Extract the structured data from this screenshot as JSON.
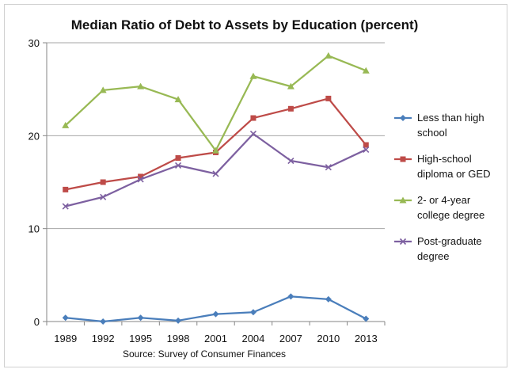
{
  "chart_data": {
    "type": "line",
    "title": "Median Ratio of Debt to Assets by Education (percent)",
    "source": "Source: Survey of Consumer Finances",
    "categories": [
      "1989",
      "1992",
      "1995",
      "1998",
      "2001",
      "2004",
      "2007",
      "2010",
      "2013"
    ],
    "ylim": [
      0,
      30
    ],
    "yticks": [
      0,
      10,
      20,
      30
    ],
    "grid": true,
    "legend_position": "right",
    "series": [
      {
        "name": "Less than high school",
        "legend_lines": [
          "Less than high",
          "school"
        ],
        "color": "#4a7ebb",
        "marker": "diamond",
        "values": [
          0.4,
          0.0,
          0.4,
          0.1,
          0.8,
          1.0,
          2.7,
          2.4,
          0.3
        ]
      },
      {
        "name": "High-school diploma or GED",
        "legend_lines": [
          "High-school",
          "diploma or GED"
        ],
        "color": "#be4b48",
        "marker": "square",
        "values": [
          14.2,
          15.0,
          15.6,
          17.6,
          18.2,
          21.9,
          22.9,
          24.0,
          19.0
        ]
      },
      {
        "name": "2- or 4-year college degree",
        "legend_lines": [
          "2- or 4-year",
          "college degree"
        ],
        "color": "#98b954",
        "marker": "triangle",
        "values": [
          21.1,
          24.9,
          25.3,
          23.9,
          18.4,
          26.4,
          25.3,
          28.6,
          27.0
        ]
      },
      {
        "name": "Post-graduate degree",
        "legend_lines": [
          "Post-graduate",
          "degree"
        ],
        "color": "#7d60a0",
        "marker": "x",
        "values": [
          12.4,
          13.4,
          15.3,
          16.8,
          15.9,
          20.2,
          17.3,
          16.6,
          18.5
        ]
      }
    ]
  }
}
